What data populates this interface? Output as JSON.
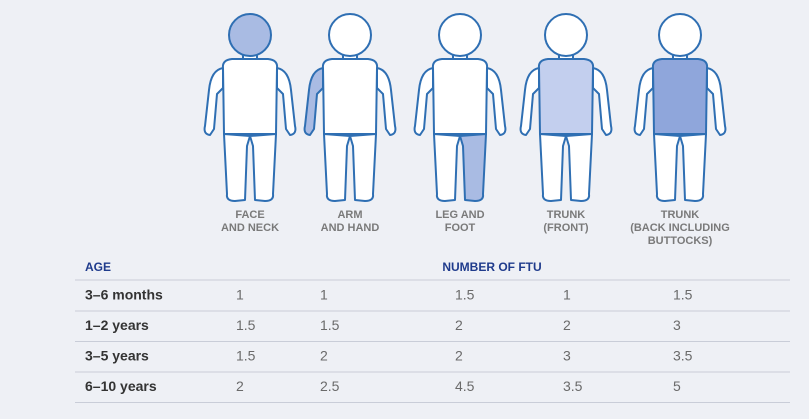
{
  "columns": [
    [
      "FACE",
      "AND NECK"
    ],
    [
      "ARM",
      "AND HAND"
    ],
    [
      "LEG AND",
      "FOOT"
    ],
    [
      "TRUNK",
      "(FRONT)"
    ],
    [
      "TRUNK",
      "(BACK INCLUDING",
      "BUTTOCKS)"
    ]
  ],
  "row_header": "AGE",
  "value_header": "NUMBER OF FTU",
  "rows": [
    {
      "age": "3–6 months",
      "values": [
        "1",
        "1",
        "1.5",
        "1",
        "1.5"
      ]
    },
    {
      "age": "1–2 years",
      "values": [
        "1.5",
        "1.5",
        "2",
        "2",
        "3"
      ]
    },
    {
      "age": "3–5 years",
      "values": [
        "1.5",
        "2",
        "2",
        "3",
        "3.5"
      ]
    },
    {
      "age": "6–10 years",
      "values": [
        "2",
        "2.5",
        "4.5",
        "3.5",
        "5"
      ]
    }
  ]
}
